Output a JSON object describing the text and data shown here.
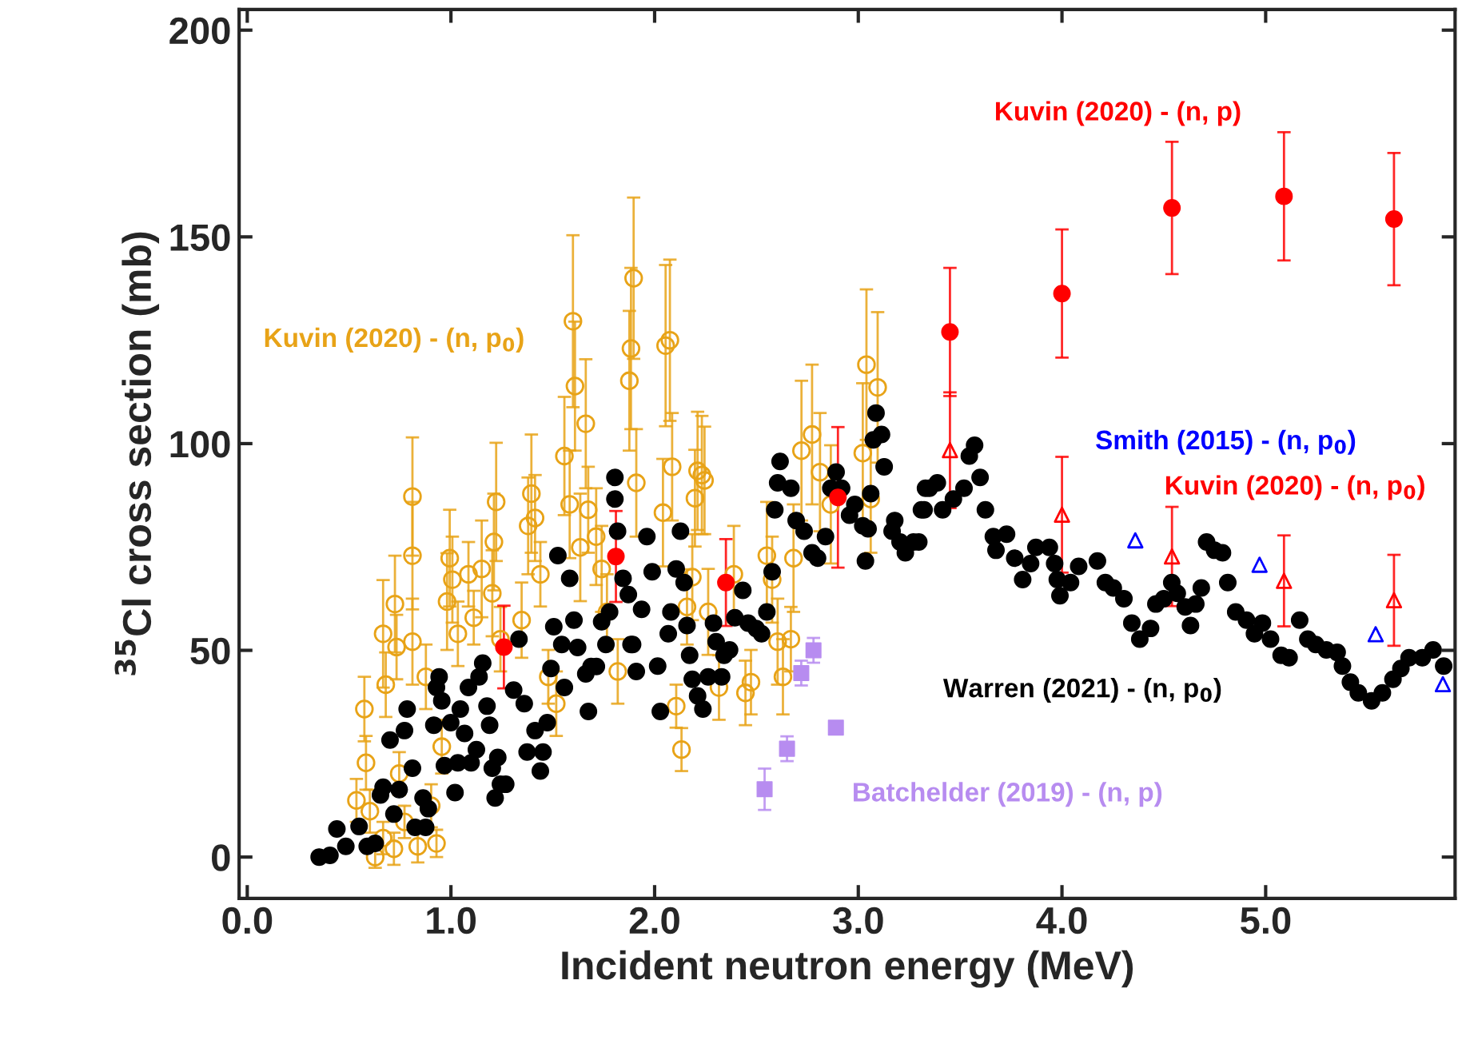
{
  "chart_data": {
    "type": "scatter",
    "xlabel": "Incident neutron energy (MeV)",
    "ylabel": "$^{35}$Cl cross section (mb)",
    "xlim": [
      -0.04,
      5.93
    ],
    "ylim": [
      -10,
      205
    ],
    "xticks": [
      {
        "value": 0,
        "label": "0.0"
      },
      {
        "value": 1,
        "label": "1.0"
      },
      {
        "value": 2,
        "label": "2.0"
      },
      {
        "value": 3,
        "label": "3.0"
      },
      {
        "value": 4,
        "label": "4.0"
      },
      {
        "value": 5,
        "label": "5.0"
      }
    ],
    "yticks": [
      0,
      50,
      100,
      150,
      200
    ],
    "grid": false,
    "legend": false,
    "series": [
      {
        "name": "Kuvin (2020) - (n, p$_{0}$)",
        "color": "#e8a317",
        "marker": "circle",
        "x": [
          0.575,
          0.583,
          0.667,
          0.68,
          0.725,
          0.733,
          0.811,
          0.811,
          0.811,
          0.877,
          0.955,
          0.981,
          0.994,
          1.007,
          1.034,
          1.086,
          1.112,
          1.151,
          1.203,
          1.211,
          1.222,
          1.243,
          1.347,
          1.379,
          1.395,
          1.413,
          1.439,
          1.478,
          1.517,
          1.557,
          1.583,
          1.599,
          1.609,
          1.635,
          1.662,
          1.674,
          1.713,
          1.74,
          1.766,
          1.819,
          1.884,
          1.876,
          1.897,
          1.91,
          0.602,
          0.667,
          0.72,
          0.772,
          0.837,
          0.903,
          0.929,
          0.746,
          0.628,
          0.536,
          2.054,
          2.075,
          2.086,
          2.041,
          2.198,
          2.211,
          2.232,
          2.245,
          2.159,
          2.185,
          2.106,
          2.132,
          2.263,
          2.316,
          2.389,
          2.446,
          2.473,
          2.551,
          2.577,
          2.604,
          2.63,
          2.669,
          2.682,
          2.721,
          2.773,
          2.812,
          3.022,
          3.04,
          3.095,
          3.061,
          2.865
        ],
        "values": [
          35.8,
          22.8,
          54,
          41.7,
          61.2,
          50.8,
          87.2,
          72.9,
          52.1,
          43.6,
          26.7,
          61.8,
          72.3,
          67.1,
          54,
          68.4,
          57.9,
          69.7,
          63.8,
          76.2,
          85.9,
          52.7,
          57.3,
          80.1,
          87.9,
          82,
          68.4,
          43.6,
          37.1,
          97,
          85.3,
          129.6,
          113.9,
          74.9,
          104.8,
          84,
          77.5,
          69.7,
          59.3,
          44.9,
          123,
          115.2,
          140,
          90.5,
          11.1,
          4.6,
          2,
          8.5,
          2.6,
          12.4,
          3.3,
          20.2,
          0,
          13.7,
          123.7,
          125,
          94.4,
          83.3,
          86.8,
          93.4,
          92.4,
          91.1,
          60.5,
          67.7,
          36.5,
          26,
          59.3,
          41,
          68.4,
          39.7,
          42.3,
          72.9,
          67.1,
          52.1,
          43.6,
          52.7,
          72.3,
          98.3,
          102.2,
          93.1,
          97.7,
          119.1,
          113.6,
          86.6,
          85.3
        ],
        "errors": [
          7.8,
          6.5,
          13,
          7.8,
          11.7,
          7.8,
          14.3,
          13,
          10.4,
          7.8,
          6.5,
          11.7,
          11.7,
          10.4,
          7.8,
          7.8,
          6.5,
          11.7,
          10.4,
          11.7,
          14.3,
          7.8,
          9.1,
          11.7,
          14.3,
          10.4,
          7.8,
          6.5,
          7.8,
          14.3,
          13,
          20.8,
          15.6,
          13,
          15.6,
          10.4,
          11.7,
          10.4,
          9.1,
          7.8,
          19.5,
          16.9,
          19.5,
          13,
          5.2,
          3.9,
          3.9,
          3.9,
          3.9,
          5.2,
          3.3,
          5.2,
          2.6,
          5.2,
          19.5,
          19.5,
          13,
          13,
          11.7,
          14.3,
          14.3,
          13,
          9.1,
          10.4,
          5.2,
          5.2,
          10.4,
          7.8,
          11.7,
          7.8,
          7.8,
          13,
          10.4,
          10.4,
          9.1,
          7.8,
          13,
          16.9,
          16.9,
          14.3,
          16.9,
          18.2,
          18.2,
          13,
          14.3
        ]
      },
      {
        "name": "Warren (2021) - (n, p$_{0}$)",
        "color": "#000000",
        "marker": "circle",
        "x": [
          0.353,
          0.406,
          0.44,
          0.484,
          0.549,
          0.589,
          0.628,
          0.654,
          0.667,
          0.701,
          0.72,
          0.746,
          0.772,
          0.785,
          0.811,
          0.824,
          0.863,
          0.876,
          0.889,
          0.916,
          0.929,
          0.942,
          0.955,
          0.968,
          0.999,
          1.02,
          1.034,
          1.046,
          1.067,
          1.086,
          1.099,
          1.125,
          1.138,
          1.156,
          1.177,
          1.19,
          1.203,
          1.217,
          1.23,
          1.243,
          1.269,
          1.308,
          1.334,
          1.36,
          1.374,
          1.413,
          1.439,
          1.452,
          1.473,
          1.491,
          1.505,
          1.525,
          1.544,
          1.557,
          1.583,
          1.604,
          1.622,
          1.662,
          1.675,
          1.688,
          1.714,
          1.74,
          1.761,
          1.779,
          1.805,
          1.818,
          1.845,
          1.871,
          1.892,
          1.91,
          1.805,
          1.884,
          1.936,
          1.962,
          1.988,
          2.015,
          2.028,
          2.067,
          2.08,
          2.106,
          2.127,
          2.145,
          2.159,
          2.172,
          2.185,
          2.211,
          2.237,
          2.263,
          2.289,
          2.302,
          2.329,
          2.341,
          2.368,
          2.394,
          2.433,
          2.459,
          2.498,
          2.525,
          2.551,
          2.577,
          2.59,
          2.604,
          2.616,
          2.669,
          2.695,
          2.734,
          2.773,
          2.8,
          2.839,
          2.865,
          2.891,
          2.918,
          2.957,
          2.983,
          3.022,
          3.035,
          3.048,
          3.061,
          3.074,
          3.087,
          3.114,
          3.127,
          3.166,
          3.205,
          3.271,
          3.31,
          3.33,
          3.179,
          3.231,
          3.297,
          3.323,
          3.349,
          3.388,
          3.414,
          3.467,
          3.519,
          3.545,
          3.571,
          3.598,
          3.624,
          3.663,
          3.676,
          3.728,
          3.768,
          3.807,
          3.846,
          3.872,
          3.938,
          3.964,
          3.977,
          3.99,
          4.042,
          4.082,
          4.174,
          4.213,
          4.252,
          4.304,
          4.343,
          4.382,
          4.435,
          4.461,
          4.5,
          4.539,
          4.566,
          4.605,
          4.631,
          4.657,
          4.684,
          4.71,
          4.749,
          4.788,
          4.814,
          4.853,
          4.906,
          4.945,
          4.984,
          5.024,
          5.076,
          5.115,
          5.167,
          5.207,
          5.246,
          5.298,
          5.351,
          5.377,
          5.416,
          5.455,
          5.52,
          5.573,
          5.625,
          5.664,
          5.704,
          5.769,
          5.822,
          5.874
        ],
        "values": [
          0,
          0.4,
          6.8,
          2.6,
          7.4,
          2.6,
          3.3,
          15,
          16.9,
          28.3,
          10.4,
          16.3,
          30.6,
          35.8,
          21.5,
          7.2,
          14.3,
          7.2,
          11.7,
          31.9,
          41,
          43.6,
          37.8,
          22.1,
          32.5,
          15.6,
          22.8,
          35.8,
          29.9,
          41,
          22.8,
          26,
          43.6,
          46.9,
          36.5,
          31.9,
          21.5,
          14.3,
          24.1,
          17.6,
          17.6,
          40.4,
          52.7,
          37.1,
          25.4,
          30.6,
          20.8,
          25.4,
          32.5,
          45.6,
          55.7,
          72.9,
          51.4,
          41,
          67.4,
          57.3,
          50.7,
          44.3,
          35.2,
          46.1,
          46.1,
          56.9,
          51.4,
          59.3,
          86.6,
          78.8,
          67.4,
          63.5,
          51.4,
          44.9,
          91.8,
          51.4,
          59.9,
          77.5,
          69,
          46.2,
          35.2,
          54,
          59.3,
          69.7,
          78.8,
          66.4,
          56,
          48.8,
          43,
          39,
          35.8,
          43.6,
          56.6,
          52.1,
          43.6,
          48.8,
          50.1,
          57.9,
          64.5,
          56.6,
          55.3,
          54,
          59.3,
          69,
          84,
          90.5,
          95.7,
          89.2,
          81.4,
          78.8,
          73.6,
          72.3,
          77.5,
          89.2,
          93.1,
          89.2,
          82.7,
          85.3,
          80.1,
          71.6,
          79.4,
          87.9,
          100.9,
          107.4,
          102.2,
          94.4,
          78.8,
          76.2,
          76.2,
          84,
          89.2,
          81.4,
          73.6,
          76.2,
          84,
          89.2,
          90.5,
          84,
          86.6,
          89.2,
          97,
          99.6,
          91.8,
          84,
          77.5,
          74.2,
          78.1,
          72.3,
          67.1,
          71,
          74.9,
          74.9,
          71,
          67.1,
          63.2,
          66.4,
          70.3,
          71.6,
          66.4,
          65.1,
          62.5,
          56.6,
          52.7,
          55.3,
          61.2,
          62.5,
          66.4,
          63.8,
          60.5,
          56,
          61.2,
          65.1,
          76.2,
          74.2,
          73.6,
          66.4,
          59.3,
          57.3,
          54,
          56.6,
          52.7,
          48.8,
          48.2,
          57.3,
          52.7,
          51.4,
          50.1,
          49.5,
          46.2,
          42.3,
          39.7,
          37.8,
          39.7,
          43,
          45.6,
          48.2,
          48.2,
          50.1,
          46.2
        ]
      },
      {
        "name": "Kuvin (2020) - (n, p)",
        "color": "#ff0000",
        "marker": "circle",
        "x": [
          1.26,
          1.81,
          2.35,
          2.9,
          3.45,
          4.0,
          4.54,
          5.09,
          5.63
        ],
        "values": [
          50.8,
          72.7,
          66.4,
          87,
          127,
          136.3,
          157,
          159.8,
          154.3
        ],
        "errors": [
          10,
          11,
          10.5,
          17,
          15.5,
          15.5,
          16,
          15.5,
          16
        ]
      },
      {
        "name": "Kuvin (2020) - (n, p$_{0}$)",
        "color": "#ff0000",
        "marker": "triangle",
        "x": [
          3.45,
          4.0,
          4.54,
          5.09,
          5.63
        ],
        "values": [
          98.4,
          82.8,
          72.7,
          66.8,
          62.1
        ],
        "errors": [
          14,
          14,
          12,
          11,
          11
        ]
      },
      {
        "name": "Smith (2015) - (n, p$_{0}$)",
        "color": "#0000ff",
        "marker": "triangle",
        "x": [
          4.36,
          4.97,
          5.54,
          5.87
        ],
        "values": [
          76.6,
          70.7,
          53.9,
          41.8
        ]
      },
      {
        "name": "Batchelder (2019) - (n, p)",
        "color": "#b78cf0",
        "marker": "square",
        "x": [
          2.54,
          2.65,
          2.72,
          2.78,
          2.89
        ],
        "values": [
          16.4,
          26.2,
          44.5,
          50,
          31.3
        ],
        "errors": [
          5,
          3,
          3,
          3,
          null
        ]
      }
    ]
  }
}
